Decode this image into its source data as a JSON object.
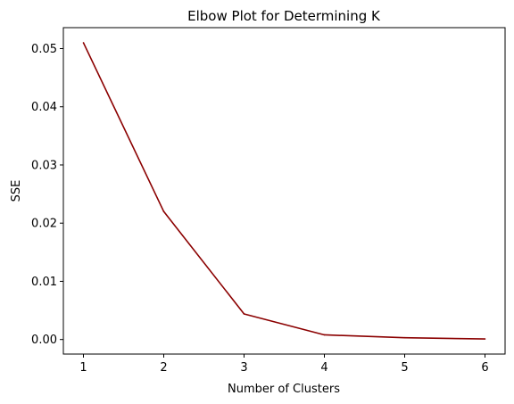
{
  "chart_data": {
    "type": "line",
    "title": "Elbow Plot for Determining K",
    "xlabel": "Number of Clusters",
    "ylabel": "SSE",
    "x": [
      1,
      2,
      3,
      4,
      5,
      6
    ],
    "series": [
      {
        "values": [
          0.051,
          0.022,
          0.0044,
          0.0008,
          0.0003,
          0.0001
        ],
        "color": "#8b0000"
      }
    ],
    "xticks": [
      "1",
      "2",
      "3",
      "4",
      "5",
      "6"
    ],
    "yticks": [
      "0.00",
      "0.01",
      "0.02",
      "0.03",
      "0.04",
      "0.05"
    ],
    "xlim": [
      0.75,
      6.25
    ],
    "ylim": [
      -0.0025,
      0.0536
    ],
    "grid": false
  }
}
